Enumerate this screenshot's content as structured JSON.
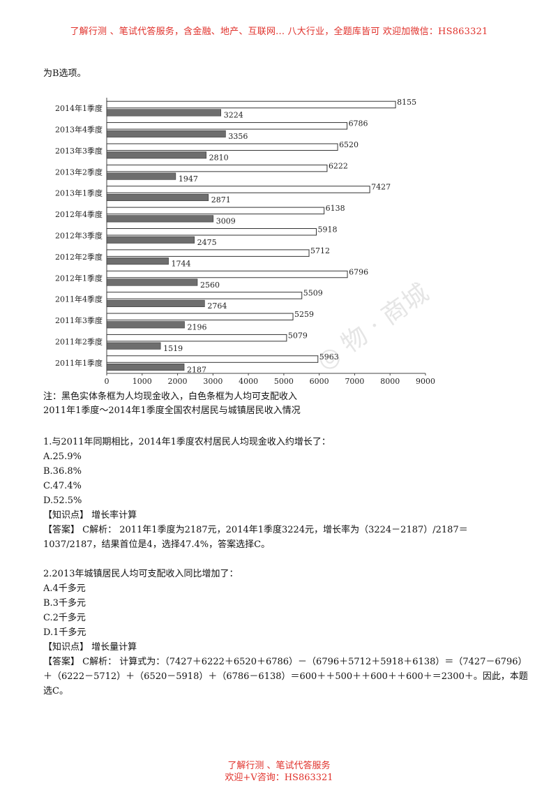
{
  "header": {
    "text": "了解行测 、笔试代答服务，含金融、地产、互联网... 八大行业，全题库皆可 欢迎加微信：HS863321"
  },
  "intro_line": "为B选项。",
  "chart_data": {
    "type": "bar",
    "orientation": "horizontal",
    "categories": [
      "2014年1季度",
      "2013年4季度",
      "2013年3季度",
      "2013年2季度",
      "2013年1季度",
      "2012年4季度",
      "2012年3季度",
      "2012年2季度",
      "2012年1季度",
      "2011年4季度",
      "2011年3季度",
      "2011年2季度",
      "2011年1季度"
    ],
    "series": [
      {
        "values": [
          8155,
          6786,
          6520,
          6222,
          7427,
          6138,
          5918,
          5712,
          6796,
          5509,
          5259,
          5079,
          5963
        ],
        "color": "#ffffff"
      },
      {
        "values": [
          3224,
          3356,
          2810,
          1947,
          2871,
          3009,
          2475,
          1744,
          2560,
          2764,
          2196,
          1519,
          2187
        ],
        "color": "#6e6e6e"
      }
    ],
    "xlim": [
      0,
      9000
    ],
    "xticks": [
      0,
      1000,
      2000,
      3000,
      4000,
      5000,
      6000,
      7000,
      8000,
      9000
    ]
  },
  "note": "注：黑色实体条框为人均现金收入，白色条框为人均可支配收入",
  "caption": "2011年1季度～2014年1季度全国农村居民与城镇居民收入情况",
  "q1": {
    "question": "1.与2011年同期相比，2014年1季度农村居民人均现金收入约增长了：",
    "options": [
      "A.25.9%",
      "B.36.8%",
      "C.47.4%",
      "D.52.5%"
    ],
    "knowledge": "【知识点】 增长率计算",
    "answer_1": "【答案】 C解析： 2011年1季度为2187元，2014年1季度3224元，增长率为（3224－2187）/2187＝",
    "answer_2": "1037/2187，结果首位是4，选择47.4%，答案选择C。"
  },
  "q2": {
    "question": "2.2013年城镇居民人均可支配收入同比增加了：",
    "options": [
      "A.4千多元",
      "B.3千多元",
      "C.2千多元",
      "D.1千多元"
    ],
    "knowledge": "【知识点】 增长量计算",
    "answer_1": "【答案】 C解析： 计算式为：（7427＋6222＋6520＋6786）－（6796＋5712＋5918＋6138）＝（7427－6796）",
    "answer_2": "＋（6222－5712）＋（6520－5918）＋（6786－6138）＝600＋＋500＋＋600＋＋600＋＝2300＋。因此，本题",
    "answer_3": "选C。"
  },
  "footer": {
    "line1": "了解行测 、笔试代答服务",
    "line2": "欢迎+V咨询：HS863321"
  }
}
